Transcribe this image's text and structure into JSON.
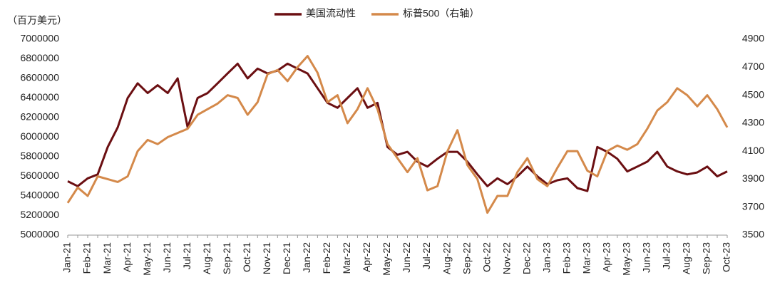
{
  "chart_data": {
    "type": "line",
    "y_label": "（百万美元）",
    "categories": [
      "Jan-21",
      null,
      "Feb-21",
      null,
      "Mar-21",
      null,
      "Apr-21",
      null,
      "May-21",
      null,
      "Jun-21",
      null,
      "Jul-21",
      null,
      "Aug-21",
      null,
      "Sep-21",
      null,
      "Oct-21",
      null,
      "Nov-21",
      null,
      "Dec-21",
      null,
      "Jan-22",
      null,
      "Feb-22",
      null,
      "Mar-22",
      null,
      "Apr-22",
      null,
      "May-22",
      null,
      "Jun-22",
      null,
      "Jul-22",
      null,
      "Aug-22",
      null,
      "Sep-22",
      null,
      "Oct-22",
      null,
      "Nov-22",
      null,
      "Dec-22",
      null,
      "Jan-23",
      null,
      "Feb-23",
      null,
      "Mar-23",
      null,
      "Apr-23",
      null,
      "May-23",
      null,
      "Jun-23",
      null,
      "Jul-23",
      null,
      "Aug-23",
      null,
      "Sep-23",
      null,
      "Oct-23"
    ],
    "series": [
      {
        "name": "美国流动性",
        "color": "#6b0f12",
        "axis": "y",
        "values": [
          5550000,
          5500000,
          5580000,
          5620000,
          5900000,
          6100000,
          6400000,
          6550000,
          6450000,
          6530000,
          6450000,
          6600000,
          6100000,
          6400000,
          6450000,
          6550000,
          6650000,
          6750000,
          6600000,
          6700000,
          6650000,
          6680000,
          6750000,
          6700000,
          6650000,
          6500000,
          6350000,
          6300000,
          6400000,
          6500000,
          6300000,
          6350000,
          5900000,
          5820000,
          5850000,
          5750000,
          5700000,
          5780000,
          5850000,
          5850000,
          5750000,
          5620000,
          5500000,
          5580000,
          5520000,
          5600000,
          5700000,
          5600000,
          5520000,
          5560000,
          5580000,
          5480000,
          5450000,
          5900000,
          5850000,
          5780000,
          5650000,
          5700000,
          5750000,
          5850000,
          5700000,
          5650000,
          5620000,
          5640000,
          5700000,
          5600000,
          5650000
        ]
      },
      {
        "name": "标普500（右轴）",
        "color": "#d4894a",
        "axis": "y2",
        "values": [
          3730,
          3840,
          3780,
          3920,
          3900,
          3880,
          3920,
          4100,
          4180,
          4150,
          4200,
          4230,
          4260,
          4360,
          4400,
          4440,
          4500,
          4480,
          4360,
          4450,
          4650,
          4680,
          4600,
          4700,
          4780,
          4660,
          4450,
          4500,
          4300,
          4400,
          4550,
          4400,
          4150,
          4050,
          3950,
          4050,
          3820,
          3850,
          4100,
          4250,
          4000,
          3900,
          3660,
          3780,
          3780,
          3950,
          4050,
          3900,
          3850,
          3980,
          4100,
          4100,
          3960,
          3920,
          4100,
          4140,
          4110,
          4150,
          4260,
          4390,
          4450,
          4550,
          4500,
          4420,
          4500,
          4400,
          4270
        ]
      }
    ],
    "ylim": [
      5000000,
      7000000
    ],
    "yticks": [
      5000000,
      5200000,
      5400000,
      5600000,
      5800000,
      6000000,
      6200000,
      6400000,
      6600000,
      6800000,
      7000000
    ],
    "y2lim": [
      3500,
      4900
    ],
    "y2ticks": [
      3500,
      3700,
      3900,
      4100,
      4300,
      4500,
      4700,
      4900
    ],
    "legend": "top"
  }
}
